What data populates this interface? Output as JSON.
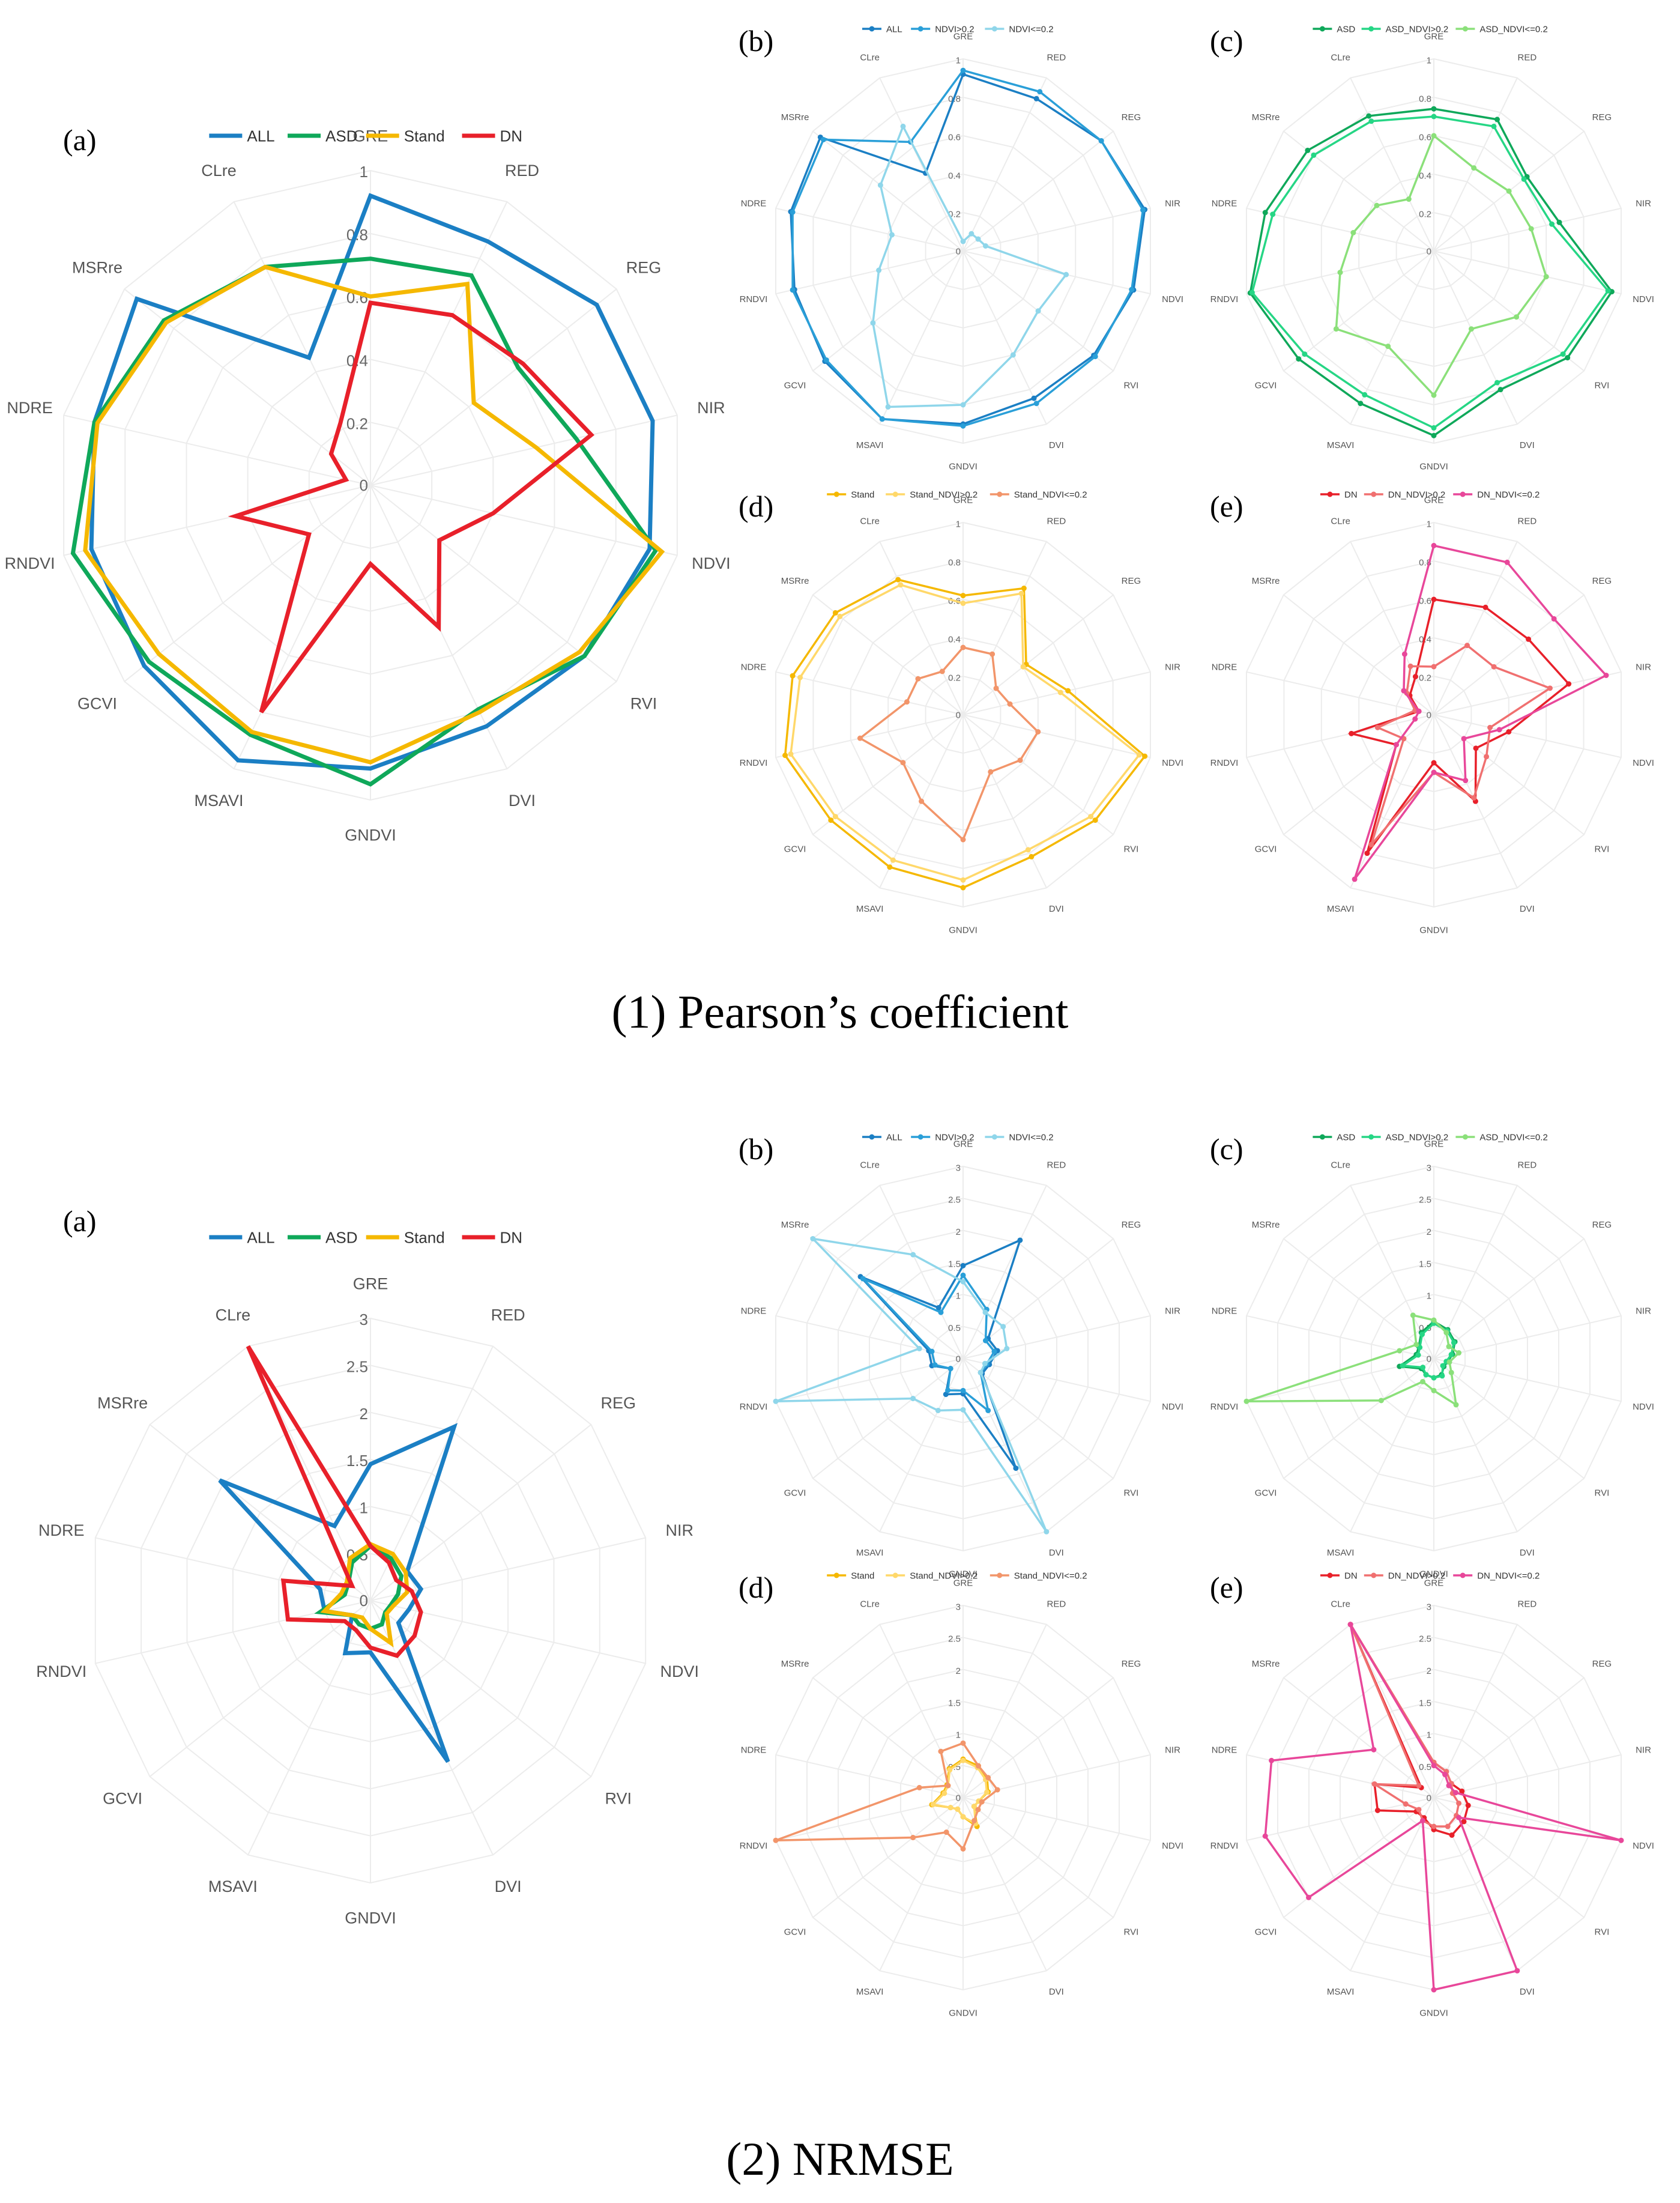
{
  "sections": [
    {
      "title": "(1) Pearson’s coefficient"
    },
    {
      "title": "(2) NRMSE"
    }
  ],
  "axes": [
    "GRE",
    "RED",
    "REG",
    "NIR",
    "NDVI",
    "RVI",
    "DVI",
    "GNDVI",
    "MSAVI",
    "GCVI",
    "RNDVI",
    "NDRE",
    "MSRre",
    "CLre"
  ],
  "colors": {
    "ALL": "#1b7fc4",
    "NDVI>0.2": "#2a9fd8",
    "NDVI<=0.2": "#8fd6ea",
    "ASD": "#0fa85a",
    "ASD_NDVI>0.2": "#26d685",
    "ASD_NDVI<=0.2": "#8be07a",
    "Stand": "#f5b800",
    "Stand_NDVI>0.2": "#ffd86a",
    "Stand_NDVI<=0.2": "#f2956a",
    "DN": "#e8202a",
    "DN_NDVI>0.2": "#f07070",
    "DN_NDVI<=0.2": "#e8479a"
  },
  "chart_data": [
    {
      "type": "radar",
      "section": 0,
      "panel": "(a)",
      "rlim": [
        0,
        1
      ],
      "ticks": [
        "0",
        "0.2",
        "0.4",
        "0.6",
        "0.8",
        "1"
      ],
      "categories": [
        "GRE",
        "RED",
        "REG",
        "NIR",
        "NDVI",
        "RVI",
        "DVI",
        "GNDVI",
        "MSAVI",
        "GCVI",
        "RNDVI",
        "NDRE",
        "MSRre",
        "CLre"
      ],
      "series": [
        {
          "name": "ALL",
          "values": [
            0.92,
            0.86,
            0.92,
            0.92,
            0.91,
            0.87,
            0.85,
            0.9,
            0.97,
            0.92,
            0.91,
            0.9,
            0.95,
            0.45
          ]
        },
        {
          "name": "ASD",
          "values": [
            0.72,
            0.74,
            0.6,
            0.67,
            0.93,
            0.87,
            0.79,
            0.95,
            0.88,
            0.9,
            0.97,
            0.9,
            0.84,
            0.77
          ]
        },
        {
          "name": "Stand",
          "values": [
            0.6,
            0.71,
            0.42,
            0.54,
            0.95,
            0.85,
            0.8,
            0.88,
            0.87,
            0.86,
            0.93,
            0.89,
            0.83,
            0.77
          ]
        },
        {
          "name": "DN",
          "values": [
            0.58,
            0.6,
            0.62,
            0.72,
            0.4,
            0.28,
            0.5,
            0.25,
            0.8,
            0.25,
            0.44,
            0.08,
            0.16,
            0.22
          ]
        }
      ]
    },
    {
      "type": "radar",
      "section": 0,
      "panel": "(b)",
      "rlim": [
        0,
        1
      ],
      "ticks": [
        "0",
        "0.2",
        "0.4",
        "0.6",
        "0.8",
        "1"
      ],
      "categories": [
        "GRE",
        "RED",
        "REG",
        "NIR",
        "NDVI",
        "RVI",
        "DVI",
        "GNDVI",
        "MSAVI",
        "GCVI",
        "RNDVI",
        "NDRE",
        "MSRre",
        "CLre"
      ],
      "series": [
        {
          "name": "ALL",
          "values": [
            0.92,
            0.88,
            0.92,
            0.97,
            0.91,
            0.87,
            0.85,
            0.9,
            0.97,
            0.92,
            0.9,
            0.92,
            0.95,
            0.45
          ]
        },
        {
          "name": "NDVI>0.2",
          "values": [
            0.94,
            0.92,
            0.92,
            0.96,
            0.9,
            0.88,
            0.88,
            0.91,
            0.97,
            0.91,
            0.91,
            0.91,
            0.93,
            0.63
          ]
        },
        {
          "name": "NDVI<=0.2",
          "values": [
            0.05,
            0.1,
            0.1,
            0.12,
            0.55,
            0.5,
            0.6,
            0.8,
            0.9,
            0.6,
            0.45,
            0.38,
            0.55,
            0.72
          ]
        }
      ]
    },
    {
      "type": "radar",
      "section": 0,
      "panel": "(c)",
      "rlim": [
        0,
        1
      ],
      "ticks": [
        "0",
        "0.2",
        "0.4",
        "0.6",
        "0.8",
        "1"
      ],
      "categories": [
        "GRE",
        "RED",
        "REG",
        "NIR",
        "NDVI",
        "RVI",
        "DVI",
        "GNDVI",
        "MSAVI",
        "GCVI",
        "RNDVI",
        "NDRE",
        "MSRre",
        "CLre"
      ],
      "series": [
        {
          "name": "ASD",
          "values": [
            0.74,
            0.76,
            0.62,
            0.67,
            0.95,
            0.89,
            0.8,
            0.96,
            0.88,
            0.9,
            0.98,
            0.9,
            0.84,
            0.78
          ]
        },
        {
          "name": "ASD_NDVI>0.2",
          "values": [
            0.7,
            0.72,
            0.6,
            0.63,
            0.93,
            0.86,
            0.76,
            0.92,
            0.83,
            0.86,
            0.97,
            0.86,
            0.8,
            0.75
          ]
        },
        {
          "name": "ASD_NDVI<=0.2",
          "values": [
            0.6,
            0.48,
            0.5,
            0.52,
            0.6,
            0.55,
            0.45,
            0.75,
            0.55,
            0.65,
            0.5,
            0.43,
            0.38,
            0.3
          ]
        }
      ]
    },
    {
      "type": "radar",
      "section": 0,
      "panel": "(d)",
      "rlim": [
        0,
        1
      ],
      "ticks": [
        "0",
        "0.2",
        "0.4",
        "0.6",
        "0.8",
        "1"
      ],
      "categories": [
        "GRE",
        "RED",
        "REG",
        "NIR",
        "NDVI",
        "RVI",
        "DVI",
        "GNDVI",
        "MSAVI",
        "GCVI",
        "RNDVI",
        "NDRE",
        "MSRre",
        "CLre"
      ],
      "series": [
        {
          "name": "Stand",
          "values": [
            0.62,
            0.73,
            0.42,
            0.56,
            0.97,
            0.88,
            0.82,
            0.9,
            0.88,
            0.88,
            0.95,
            0.91,
            0.85,
            0.78
          ]
        },
        {
          "name": "Stand_NDVI>0.2",
          "values": [
            0.58,
            0.7,
            0.4,
            0.52,
            0.94,
            0.85,
            0.78,
            0.86,
            0.84,
            0.85,
            0.92,
            0.87,
            0.82,
            0.75
          ]
        },
        {
          "name": "Stand_NDVI<=0.2",
          "values": [
            0.35,
            0.35,
            0.22,
            0.25,
            0.4,
            0.38,
            0.33,
            0.65,
            0.5,
            0.4,
            0.55,
            0.3,
            0.3,
            0.25
          ]
        }
      ]
    },
    {
      "type": "radar",
      "section": 0,
      "panel": "(e)",
      "rlim": [
        0,
        1
      ],
      "ticks": [
        "0",
        "0.2",
        "0.4",
        "0.6",
        "0.8",
        "1"
      ],
      "categories": [
        "GRE",
        "RED",
        "REG",
        "NIR",
        "NDVI",
        "RVI",
        "DVI",
        "GNDVI",
        "MSAVI",
        "GCVI",
        "RNDVI",
        "NDRE",
        "MSRre",
        "CLre"
      ],
      "series": [
        {
          "name": "DN",
          "values": [
            0.6,
            0.62,
            0.63,
            0.72,
            0.4,
            0.28,
            0.5,
            0.25,
            0.8,
            0.25,
            0.44,
            0.08,
            0.16,
            0.22
          ]
        },
        {
          "name": "DN_NDVI>0.2",
          "values": [
            0.25,
            0.4,
            0.4,
            0.62,
            0.3,
            0.35,
            0.48,
            0.3,
            0.75,
            0.2,
            0.3,
            0.1,
            0.18,
            0.28
          ]
        },
        {
          "name": "DN_NDVI<=0.2",
          "values": [
            0.88,
            0.88,
            0.8,
            0.92,
            0.35,
            0.2,
            0.38,
            0.3,
            0.95,
            0.25,
            0.1,
            0.08,
            0.2,
            0.35
          ]
        }
      ]
    },
    {
      "type": "radar",
      "section": 1,
      "panel": "(a)",
      "rlim": [
        0,
        3
      ],
      "ticks": [
        "0",
        "0.5",
        "1",
        "1.5",
        "2",
        "2.5",
        "3"
      ],
      "categories": [
        "GRE",
        "RED",
        "REG",
        "NIR",
        "NDVI",
        "RVI",
        "DVI",
        "GNDVI",
        "MSAVI",
        "GCVI",
        "RNDVI",
        "NDRE",
        "MSRre",
        "CLre"
      ],
      "series": [
        {
          "name": "ALL",
          "values": [
            1.45,
            2.05,
            0.5,
            0.55,
            0.42,
            0.38,
            1.9,
            0.55,
            0.62,
            0.25,
            0.5,
            0.55,
            2.05,
            0.88
          ]
        },
        {
          "name": "ASD",
          "values": [
            0.58,
            0.5,
            0.42,
            0.3,
            0.22,
            0.2,
            0.28,
            0.3,
            0.28,
            0.25,
            0.55,
            0.28,
            0.3,
            0.45
          ]
        },
        {
          "name": "Stand",
          "values": [
            0.6,
            0.55,
            0.48,
            0.4,
            0.25,
            0.22,
            0.5,
            0.3,
            0.2,
            0.25,
            0.5,
            0.32,
            0.32,
            0.5
          ]
        },
        {
          "name": "DN",
          "values": [
            0.58,
            0.45,
            0.35,
            0.45,
            0.55,
            0.6,
            0.65,
            0.5,
            0.35,
            0.35,
            0.9,
            0.95,
            0.25,
            3.0
          ]
        }
      ]
    },
    {
      "type": "radar",
      "section": 1,
      "panel": "(b)",
      "rlim": [
        0,
        3
      ],
      "ticks": [
        "0",
        "0.5",
        "1",
        "1.5",
        "2",
        "2.5",
        "3"
      ],
      "categories": [
        "GRE",
        "RED",
        "REG",
        "NIR",
        "NDVI",
        "RVI",
        "DVI",
        "GNDVI",
        "MSAVI",
        "GCVI",
        "RNDVI",
        "NDRE",
        "MSRre",
        "CLre"
      ],
      "series": [
        {
          "name": "ALL",
          "values": [
            1.45,
            2.05,
            0.5,
            0.55,
            0.42,
            0.38,
            1.9,
            0.55,
            0.62,
            0.25,
            0.5,
            0.55,
            2.05,
            0.88
          ]
        },
        {
          "name": "NDVI>0.2",
          "values": [
            1.3,
            0.85,
            0.45,
            0.5,
            0.38,
            0.35,
            0.9,
            0.5,
            0.55,
            0.25,
            0.45,
            0.5,
            2.0,
            0.8
          ]
        },
        {
          "name": "NDVI<=0.2",
          "values": [
            1.2,
            0.8,
            0.8,
            0.7,
            0.35,
            0.35,
            3.0,
            0.8,
            0.9,
            1.0,
            3.0,
            0.7,
            3.0,
            1.8
          ]
        }
      ]
    },
    {
      "type": "radar",
      "section": 1,
      "panel": "(c)",
      "rlim": [
        0,
        3
      ],
      "ticks": [
        "0",
        "0.5",
        "1",
        "1.5",
        "2",
        "2.5",
        "3"
      ],
      "categories": [
        "GRE",
        "RED",
        "REG",
        "NIR",
        "NDVI",
        "RVI",
        "DVI",
        "GNDVI",
        "MSAVI",
        "GCVI",
        "RNDVI",
        "NDRE",
        "MSRre",
        "CLre"
      ],
      "series": [
        {
          "name": "ASD",
          "values": [
            0.58,
            0.5,
            0.42,
            0.3,
            0.22,
            0.2,
            0.28,
            0.3,
            0.28,
            0.25,
            0.55,
            0.28,
            0.3,
            0.45
          ]
        },
        {
          "name": "ASD_NDVI>0.2",
          "values": [
            0.55,
            0.48,
            0.4,
            0.28,
            0.2,
            0.18,
            0.3,
            0.3,
            0.28,
            0.22,
            0.5,
            0.25,
            0.28,
            0.42
          ]
        },
        {
          "name": "ASD_NDVI<=0.2",
          "values": [
            0.6,
            0.45,
            0.3,
            0.4,
            0.25,
            0.35,
            0.8,
            0.5,
            0.4,
            1.05,
            3.0,
            0.55,
            0.35,
            0.75
          ]
        }
      ]
    },
    {
      "type": "radar",
      "section": 1,
      "panel": "(d)",
      "rlim": [
        0,
        3
      ],
      "ticks": [
        "0",
        "0.5",
        "1",
        "1.5",
        "2",
        "2.5",
        "3"
      ],
      "categories": [
        "GRE",
        "RED",
        "REG",
        "NIR",
        "NDVI",
        "RVI",
        "DVI",
        "GNDVI",
        "MSAVI",
        "GCVI",
        "RNDVI",
        "NDRE",
        "MSRre",
        "CLre"
      ],
      "series": [
        {
          "name": "Stand",
          "values": [
            0.6,
            0.55,
            0.48,
            0.4,
            0.25,
            0.22,
            0.5,
            0.3,
            0.2,
            0.25,
            0.5,
            0.32,
            0.32,
            0.5
          ]
        },
        {
          "name": "Stand_NDVI>0.2",
          "values": [
            0.58,
            0.52,
            0.45,
            0.38,
            0.25,
            0.22,
            0.45,
            0.3,
            0.2,
            0.25,
            0.48,
            0.3,
            0.3,
            0.48
          ]
        },
        {
          "name": "Stand_NDVI<=0.2",
          "values": [
            0.85,
            0.55,
            0.5,
            0.55,
            0.3,
            0.3,
            0.4,
            0.8,
            0.6,
            1.0,
            3.0,
            0.7,
            0.3,
            0.8
          ]
        }
      ]
    },
    {
      "type": "radar",
      "section": 1,
      "panel": "(e)",
      "rlim": [
        0,
        3
      ],
      "ticks": [
        "0",
        "0.5",
        "1",
        "1.5",
        "2",
        "2.5",
        "3"
      ],
      "categories": [
        "GRE",
        "RED",
        "REG",
        "NIR",
        "NDVI",
        "RVI",
        "DVI",
        "GNDVI",
        "MSAVI",
        "GCVI",
        "RNDVI",
        "NDRE",
        "MSRre",
        "CLre"
      ],
      "series": [
        {
          "name": "DN",
          "values": [
            0.55,
            0.45,
            0.35,
            0.45,
            0.55,
            0.6,
            0.65,
            0.5,
            0.35,
            0.35,
            0.9,
            0.95,
            0.25,
            3.0
          ]
        },
        {
          "name": "DN_NDVI>0.2",
          "values": [
            0.55,
            0.45,
            0.35,
            0.3,
            0.4,
            0.45,
            0.5,
            0.45,
            0.4,
            0.3,
            0.45,
            0.95,
            0.3,
            3.0
          ]
        },
        {
          "name": "DN_NDVI<=0.2",
          "values": [
            0.5,
            0.4,
            0.3,
            0.35,
            3.0,
            0.5,
            3.0,
            3.0,
            0.4,
            2.5,
            2.7,
            2.6,
            1.2,
            3.0
          ]
        }
      ]
    }
  ]
}
